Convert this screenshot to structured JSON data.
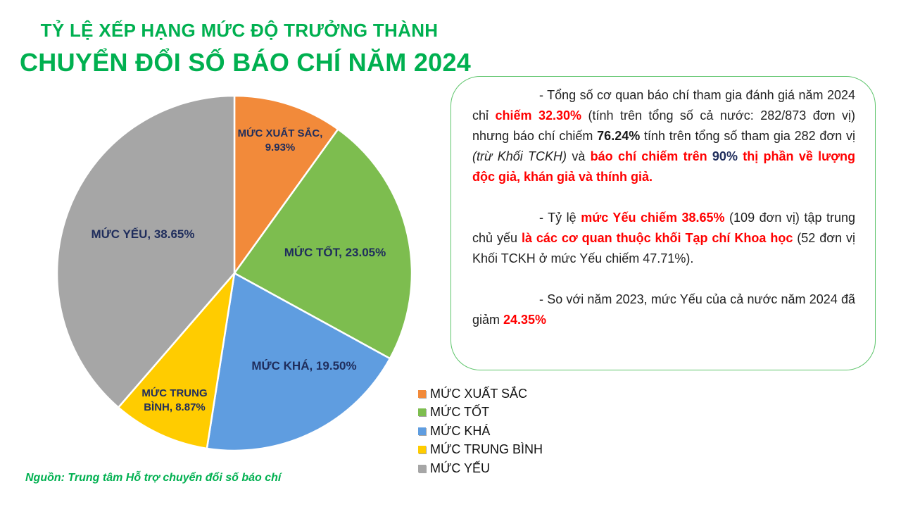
{
  "title": {
    "line1": "TỶ LỆ XẾP HẠNG MỨC ĐỘ TRƯỞNG THÀNH",
    "line2": "CHUYỂN ĐỔI SỐ BÁO CHÍ NĂM 2024"
  },
  "chart_data": {
    "type": "pie",
    "title": "TỶ LỆ XẾP HẠNG MỨC ĐỘ TRƯỞNG THÀNH CHUYỂN ĐỔI SỐ BÁO CHÍ NĂM 2024",
    "categories": [
      "MỨC XUẤT SẮC",
      "MỨC TỐT",
      "MỨC KHÁ",
      "MỨC TRUNG BÌNH",
      "MỨC YẾU"
    ],
    "values": [
      9.93,
      23.05,
      19.5,
      8.87,
      38.65
    ],
    "unit": "%",
    "colors": [
      "#f28a3a",
      "#7dbd4f",
      "#5f9de0",
      "#ffcc00",
      "#a6a6a6"
    ],
    "labels": [
      [
        "MỨC XUẤT SẮC,",
        "9.93%"
      ],
      [
        "MỨC TỐT, 23.05%"
      ],
      [
        "MỨC KHÁ, 19.50%"
      ],
      [
        "MỨC TRUNG",
        "BÌNH, 8.87%"
      ],
      [
        "MỨC YẾU, 38.65%"
      ]
    ],
    "legend_position": "bottom-right"
  },
  "info": {
    "p1": {
      "a": "- Tổng số cơ quan báo chí tham gia đánh giá năm 2024 chỉ ",
      "b": "chiếm 32.30%",
      "c": " (tính trên tổng số cả nước: 282/873 đơn vị) nhưng báo chí chiếm ",
      "d": "76.24%",
      "e": " tính trên tổng số tham gia 282 đơn vị ",
      "f": "(trừ Khối TCKH)",
      "g": " và ",
      "h": "báo chí chiếm trên ",
      "i": "90%",
      "j": " thị phần về lượng độc giả, khán giả và thính giả."
    },
    "p2": {
      "a": "- Tỷ lệ ",
      "b": "mức Yếu chiếm 38.65%",
      "c": " (109 đơn vị) tập trung chủ yếu ",
      "d": "là các cơ quan thuộc khối Tạp chí Khoa học",
      "e": " (52 đơn vị Khối TCKH ở mức Yếu chiếm 47.71%)."
    },
    "p3": {
      "a": "- So với năm 2023, mức Yếu của cả nước năm 2024 đã giảm ",
      "b": "24.35%"
    }
  },
  "source": "Nguồn: Trung tâm Hỗ trợ chuyển đổi số báo chí"
}
